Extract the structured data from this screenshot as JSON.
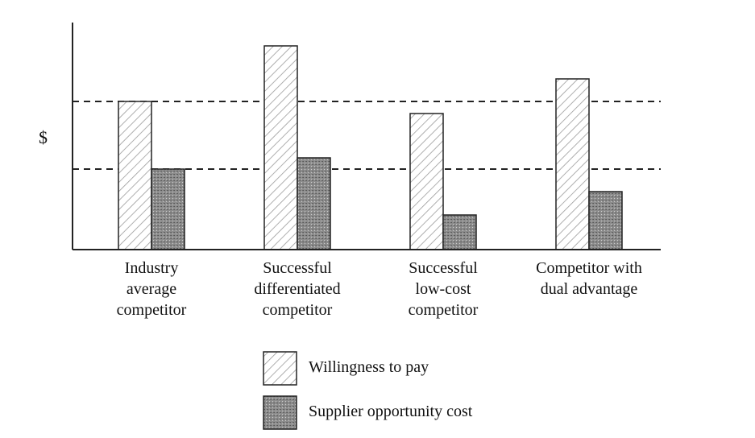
{
  "chart_data": {
    "type": "bar",
    "y_label": "$",
    "categories": [
      "Industry\naverage\ncompetitor",
      "Successful\ndifferentiated\ncompetitor",
      "Successful\nlow-cost\ncompetitor",
      "Competitor with\ndual advantage"
    ],
    "series": [
      {
        "name": "Willingness to pay",
        "color": "#9a9a9a",
        "pattern": "hatch",
        "values": [
          184,
          253,
          169,
          212
        ]
      },
      {
        "name": "Supplier opportunity cost",
        "color": "#8c8c8c",
        "pattern": "stipple",
        "values": [
          100,
          114,
          43,
          72
        ]
      }
    ],
    "ylim": [
      0,
      282
    ],
    "reference_lines": true
  }
}
